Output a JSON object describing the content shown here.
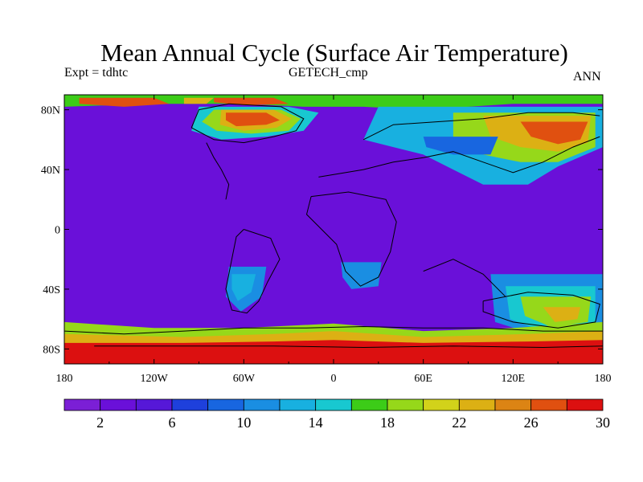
{
  "title": "Mean Annual Cycle (Surface Air Temperature)",
  "left_subtitle": "Expt = tdhtc",
  "center_subtitle": "GETECH_cmp",
  "right_subtitle": "ANN",
  "lon_ticks": [
    "180",
    "120W",
    "60W",
    "0",
    "60E",
    "120E",
    "180"
  ],
  "lat_ticks": [
    "80N",
    "40N",
    "0",
    "40S",
    "80S"
  ],
  "colorbar": {
    "colors": [
      "#7b1fd6",
      "#6a10d9",
      "#5618d8",
      "#1e40dc",
      "#1866e0",
      "#1a8ee2",
      "#18b0e0",
      "#18c8d0",
      "#3ccc18",
      "#96d81a",
      "#d2d21a",
      "#dcb014",
      "#dc8414",
      "#e05010",
      "#dc1010"
    ],
    "labels": [
      "2",
      "6",
      "10",
      "14",
      "18",
      "22",
      "26",
      "30"
    ]
  },
  "chart_data": {
    "type": "heatmap",
    "x_range": [
      -180,
      180
    ],
    "y_range": [
      -90,
      90
    ],
    "levels": [
      0,
      2,
      4,
      6,
      8,
      10,
      12,
      14,
      16,
      18,
      20,
      22,
      24,
      26,
      28,
      30
    ]
  }
}
